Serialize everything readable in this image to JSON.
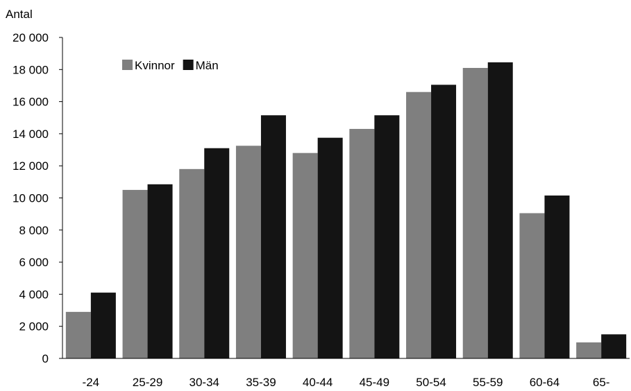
{
  "chart_data": {
    "type": "bar",
    "ylabel": "Antal",
    "ylim": [
      0,
      20000
    ],
    "yticks": [
      "0",
      "2 000",
      "4 000",
      "6 000",
      "8 000",
      "10 000",
      "12 000",
      "14 000",
      "16 000",
      "18 000",
      "20 000"
    ],
    "categories": [
      "-24",
      "25-29",
      "30-34",
      "35-39",
      "40-44",
      "45-49",
      "50-54",
      "55-59",
      "60-64",
      "65-"
    ],
    "series": [
      {
        "name": "Kvinnor",
        "color": "#7f7f7f",
        "values": [
          2900,
          10500,
          11800,
          13250,
          12800,
          14300,
          16600,
          18100,
          9050,
          1000
        ]
      },
      {
        "name": "Män",
        "color": "#141414",
        "values": [
          4100,
          10850,
          13100,
          15150,
          13750,
          15150,
          17050,
          18450,
          10150,
          1500
        ]
      }
    ],
    "grid": false,
    "legend_position": "top-left"
  }
}
